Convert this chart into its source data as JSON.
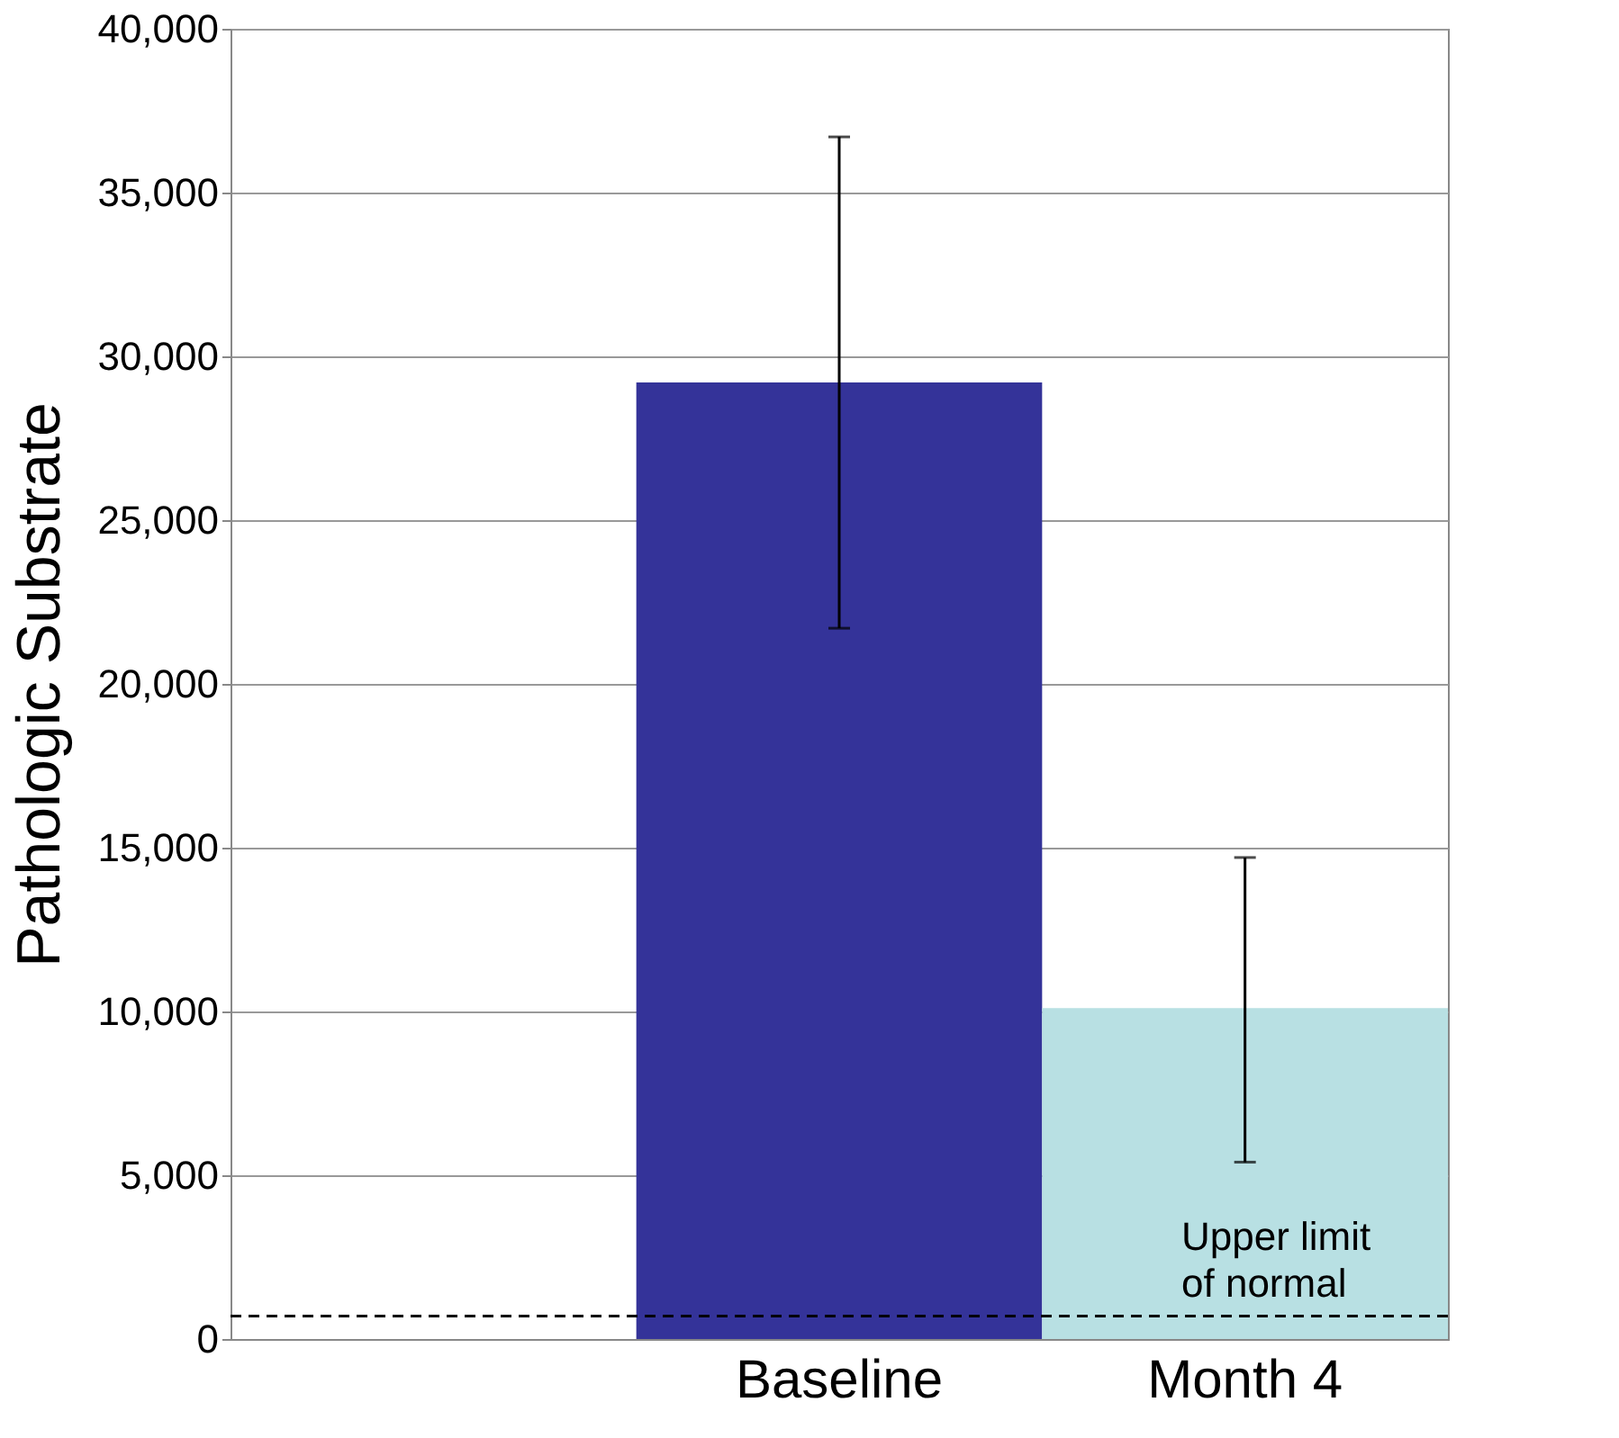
{
  "chart_data": {
    "type": "bar",
    "ylabel": "Pathologic Substrate",
    "categories": [
      "Baseline",
      "Month 4"
    ],
    "values": [
      29200,
      10100
    ],
    "colors": [
      "#343399",
      "#b8e0e3"
    ],
    "errors": [
      [
        21700,
        36700
      ],
      [
        5400,
        14700
      ]
    ],
    "ylim": [
      0,
      40000
    ],
    "yticks": [
      0,
      {
        "value": 5000,
        "label": "5,000"
      },
      {
        "value": 10000,
        "label": "10,000"
      },
      {
        "value": 15000,
        "label": "15,000"
      },
      {
        "value": 20000,
        "label": "20,000"
      },
      {
        "value": 25000,
        "label": "25,000"
      },
      {
        "value": 30000,
        "label": "30,000"
      },
      {
        "value": 35000,
        "label": "35,000"
      },
      {
        "value": 40000,
        "label": "40,000"
      }
    ],
    "grid": "y",
    "ref_lines": [
      {
        "axis": "y",
        "value": 700,
        "label": "Upper limit of normal",
        "color": "#000000",
        "line_style": "dashed"
      }
    ]
  }
}
